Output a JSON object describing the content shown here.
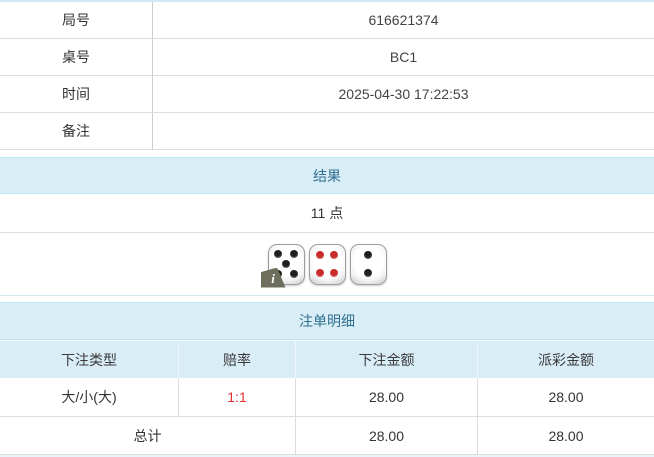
{
  "info_table": {
    "rows": [
      {
        "label": "局号",
        "value": "616621374"
      },
      {
        "label": "桌号",
        "value": "BC1"
      },
      {
        "label": "时间",
        "value": "2025-04-30 17:22:53"
      },
      {
        "label": "备注",
        "value": ""
      }
    ]
  },
  "result_section": {
    "title": "结果",
    "points": "11 点",
    "dice": [
      {
        "value": 5,
        "color": "black"
      },
      {
        "value": 4,
        "color": "red"
      },
      {
        "value": 2,
        "color": "black"
      }
    ],
    "info_icon": "i"
  },
  "bets_section": {
    "title": "注单明细",
    "columns": [
      "下注类型",
      "赔率",
      "下注金额",
      "派彩金额"
    ],
    "rows": [
      {
        "bet_type": "大/小(大)",
        "odds": "1:1",
        "bet_amount": "28.00",
        "payout": "28.00"
      }
    ],
    "total": {
      "label": "总计",
      "bet_amount": "28.00",
      "payout": "28.00"
    }
  },
  "colors": {
    "header_bg": "#d9edf7",
    "header_text": "#31708f",
    "panel_border": "#bce8f1",
    "row_border": "#dddddd",
    "odds_red": "#e03131",
    "text": "#333333",
    "pip_black": "#1f1f1f",
    "pip_red": "#c92a2a"
  }
}
